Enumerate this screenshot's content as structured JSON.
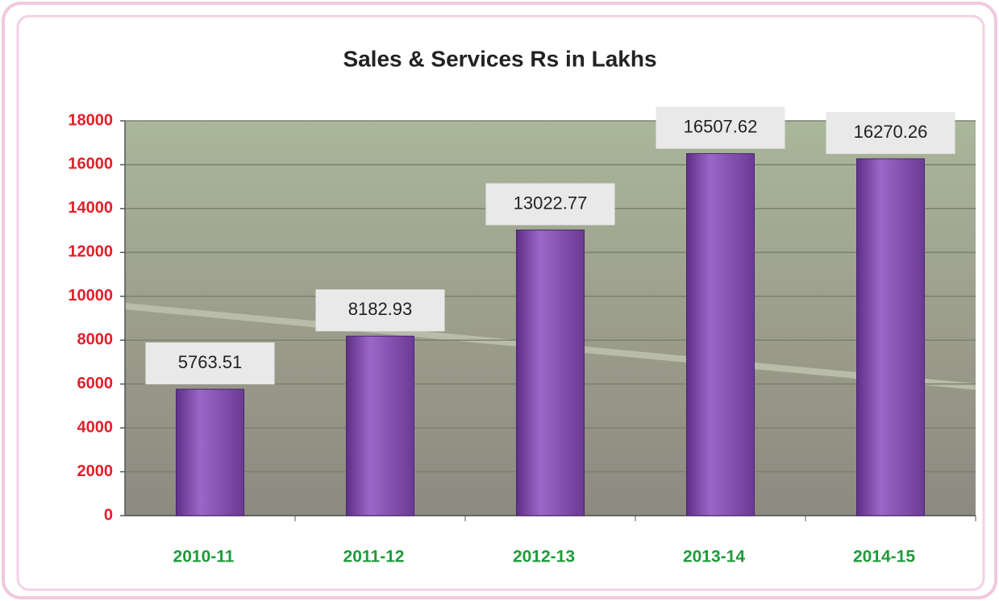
{
  "chart_data": {
    "type": "bar",
    "title": "Sales & Services Rs in Lakhs",
    "categories": [
      "2010-11",
      "2011-12",
      "2012-13",
      "2013-14",
      "2014-15"
    ],
    "values": [
      5763.51,
      8182.93,
      13022.77,
      16507.62,
      16270.26
    ],
    "color": "#8a55b5",
    "ylim": [
      0,
      18000
    ],
    "yticks": [
      0,
      2000,
      4000,
      6000,
      8000,
      10000,
      12000,
      14000,
      16000,
      18000
    ],
    "ytick_color": "#e0202a",
    "category_color": "#1f9a3a",
    "grid": true
  }
}
